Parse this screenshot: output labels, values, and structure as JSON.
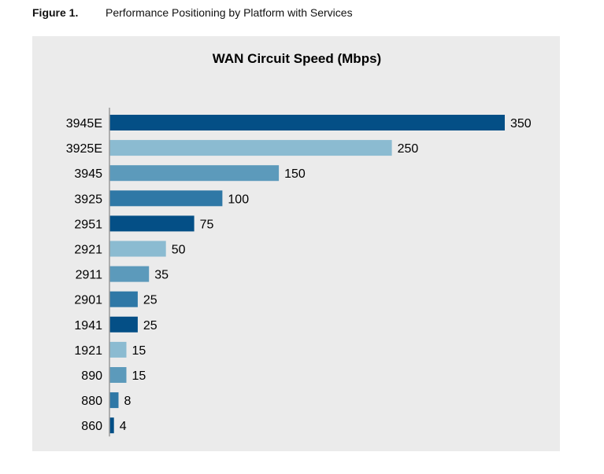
{
  "figure": {
    "label": "Figure 1.",
    "caption": "Performance Positioning by Platform with Services"
  },
  "chart_data": {
    "type": "bar",
    "orientation": "horizontal",
    "title": "WAN Circuit Speed (Mbps)",
    "xlabel": "",
    "ylabel": "",
    "categories": [
      "3945E",
      "3925E",
      "3945",
      "3925",
      "2951",
      "2921",
      "2911",
      "2901",
      "1941",
      "1921",
      "890",
      "880",
      "860"
    ],
    "values": [
      350,
      250,
      150,
      100,
      75,
      50,
      35,
      25,
      25,
      15,
      15,
      8,
      4
    ],
    "value_labels": [
      "350",
      "250",
      "150",
      "100",
      "75",
      "50",
      "35",
      "25",
      "25",
      "15",
      "15",
      "8",
      "4"
    ],
    "bar_colors": [
      "#044f86",
      "#8bbbd1",
      "#5c9abb",
      "#2f78a6",
      "#044f86",
      "#8bbbd1",
      "#5c9abb",
      "#2f78a6",
      "#044f86",
      "#8bbbd1",
      "#5c9abb",
      "#2f78a6",
      "#044f86"
    ],
    "xlim": [
      0,
      350
    ],
    "grid": false,
    "legend": "none",
    "background_color": "#ebebeb",
    "axis_color": "#9a9a9a"
  }
}
